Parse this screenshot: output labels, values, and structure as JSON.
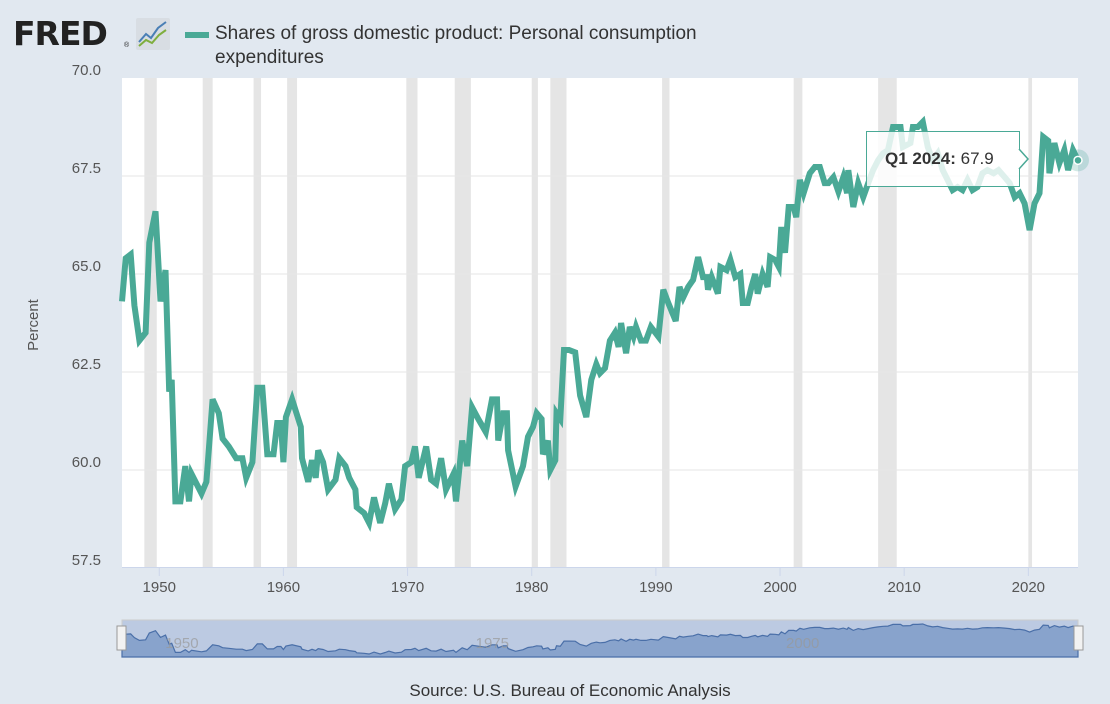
{
  "logo": {
    "text": "FRED",
    "registered": "®",
    "icon": "line-chart-icon"
  },
  "legend": {
    "label": "Shares of gross domestic product: Personal consumption expenditures",
    "color": "#4aa996"
  },
  "tooltip": {
    "period": "Q1 2024:",
    "value": "67.9"
  },
  "source": "Source: U.S. Bureau of Economic Analysis",
  "navigator": {
    "labels": [
      "1950",
      "1975",
      "2000"
    ],
    "label_years": [
      1950,
      1975,
      2000
    ]
  },
  "chart_data": {
    "type": "line",
    "title": "",
    "xlabel": "",
    "ylabel": "Percent",
    "xlim": [
      1947,
      2024
    ],
    "ylim": [
      57.5,
      70.0
    ],
    "yticks": [
      "57.5",
      "60.0",
      "62.5",
      "65.0",
      "67.5",
      "70.0"
    ],
    "xticks": [
      "1950",
      "1960",
      "1970",
      "1980",
      "1990",
      "2000",
      "2010",
      "2020"
    ],
    "grid": true,
    "legend_position": "top",
    "recession_color": "#e5e5e5",
    "recessions": [
      [
        1948.8,
        1949.8
      ],
      [
        1953.5,
        1954.3
      ],
      [
        1957.6,
        1958.2
      ],
      [
        1960.3,
        1961.1
      ],
      [
        1969.9,
        1970.8
      ],
      [
        1973.8,
        1975.1
      ],
      [
        1980.0,
        1980.5
      ],
      [
        1981.5,
        1982.8
      ],
      [
        1990.5,
        1991.1
      ],
      [
        2001.1,
        2001.8
      ],
      [
        2007.9,
        2009.4
      ],
      [
        2020.0,
        2020.3
      ]
    ],
    "series": [
      {
        "color": "#4aa996",
        "points": [
          [
            1947.0,
            64.3
          ],
          [
            1947.3,
            65.4
          ],
          [
            1947.7,
            65.5
          ],
          [
            1948.0,
            64.2
          ],
          [
            1948.4,
            63.3
          ],
          [
            1948.9,
            63.5
          ],
          [
            1949.2,
            65.8
          ],
          [
            1949.7,
            66.6
          ],
          [
            1950.1,
            64.3
          ],
          [
            1950.5,
            65.1
          ],
          [
            1950.8,
            62.0
          ],
          [
            1951.0,
            62.3
          ],
          [
            1951.3,
            59.2
          ],
          [
            1951.7,
            59.2
          ],
          [
            1952.1,
            60.1
          ],
          [
            1952.4,
            59.2
          ],
          [
            1952.6,
            59.9
          ],
          [
            1953.4,
            59.4
          ],
          [
            1953.8,
            59.7
          ],
          [
            1954.3,
            61.8
          ],
          [
            1954.8,
            61.45
          ],
          [
            1955.1,
            60.8
          ],
          [
            1955.6,
            60.6
          ],
          [
            1956.2,
            60.3
          ],
          [
            1956.7,
            60.3
          ],
          [
            1957.0,
            59.8
          ],
          [
            1957.5,
            60.2
          ],
          [
            1957.9,
            62.1
          ],
          [
            1958.3,
            62.1
          ],
          [
            1958.7,
            60.4
          ],
          [
            1959.2,
            60.4
          ],
          [
            1959.5,
            61.2
          ],
          [
            1959.8,
            61.2
          ],
          [
            1960.0,
            60.2
          ],
          [
            1960.2,
            61.35
          ],
          [
            1960.7,
            61.8
          ],
          [
            1961.4,
            61.1
          ],
          [
            1961.5,
            60.3
          ],
          [
            1962.0,
            59.7
          ],
          [
            1962.3,
            60.25
          ],
          [
            1962.6,
            59.8
          ],
          [
            1962.8,
            60.5
          ],
          [
            1963.2,
            60.2
          ],
          [
            1963.6,
            59.5
          ],
          [
            1964.2,
            59.75
          ],
          [
            1964.5,
            60.3
          ],
          [
            1965.0,
            60.1
          ],
          [
            1965.3,
            59.8
          ],
          [
            1965.8,
            59.5
          ],
          [
            1965.9,
            59.05
          ],
          [
            1966.5,
            58.9
          ],
          [
            1966.9,
            58.65
          ],
          [
            1967.3,
            59.3
          ],
          [
            1967.8,
            58.65
          ],
          [
            1968.2,
            59.15
          ],
          [
            1968.5,
            59.65
          ],
          [
            1969.0,
            59.0
          ],
          [
            1969.5,
            59.25
          ],
          [
            1969.8,
            60.1
          ],
          [
            1970.3,
            60.2
          ],
          [
            1970.6,
            60.6
          ],
          [
            1970.9,
            59.8
          ],
          [
            1971.5,
            60.6
          ],
          [
            1971.9,
            59.75
          ],
          [
            1972.3,
            59.65
          ],
          [
            1972.7,
            60.3
          ],
          [
            1973.1,
            59.5
          ],
          [
            1973.7,
            59.9
          ],
          [
            1973.9,
            59.2
          ],
          [
            1974.4,
            60.75
          ],
          [
            1974.8,
            60.1
          ],
          [
            1975.2,
            61.6
          ],
          [
            1975.7,
            61.3
          ],
          [
            1976.3,
            60.97
          ],
          [
            1976.8,
            61.8
          ],
          [
            1977.2,
            61.8
          ],
          [
            1977.3,
            60.75
          ],
          [
            1977.7,
            61.45
          ],
          [
            1978.0,
            61.45
          ],
          [
            1978.1,
            60.5
          ],
          [
            1978.7,
            59.58
          ],
          [
            1979.3,
            60.1
          ],
          [
            1979.7,
            60.85
          ],
          [
            1980.1,
            61.1
          ],
          [
            1980.4,
            61.45
          ],
          [
            1980.8,
            61.3
          ],
          [
            1980.9,
            60.4
          ],
          [
            1981.3,
            60.75
          ],
          [
            1981.5,
            60.0
          ],
          [
            1981.9,
            60.25
          ],
          [
            1982.0,
            61.45
          ],
          [
            1982.3,
            61.3
          ],
          [
            1982.6,
            63.06
          ],
          [
            1983.0,
            63.06
          ],
          [
            1983.5,
            63.0
          ],
          [
            1983.9,
            61.9
          ],
          [
            1984.4,
            61.35
          ],
          [
            1984.8,
            62.3
          ],
          [
            1985.2,
            62.7
          ],
          [
            1985.5,
            62.47
          ],
          [
            1985.9,
            62.6
          ],
          [
            1986.3,
            63.3
          ],
          [
            1986.7,
            63.5
          ],
          [
            1987.0,
            63.14
          ],
          [
            1987.2,
            63.75
          ],
          [
            1987.6,
            62.98
          ],
          [
            1987.9,
            63.65
          ],
          [
            1988.2,
            63.4
          ],
          [
            1988.4,
            63.65
          ],
          [
            1988.8,
            63.3
          ],
          [
            1989.2,
            63.3
          ],
          [
            1989.6,
            63.65
          ],
          [
            1990.2,
            63.4
          ],
          [
            1990.6,
            64.6
          ],
          [
            1991.0,
            64.26
          ],
          [
            1991.6,
            63.8
          ],
          [
            1991.9,
            64.67
          ],
          [
            1992.2,
            64.4
          ],
          [
            1992.6,
            64.67
          ],
          [
            1993.0,
            64.85
          ],
          [
            1993.4,
            65.43
          ],
          [
            1993.8,
            64.92
          ],
          [
            1994.1,
            64.92
          ],
          [
            1994.2,
            64.6
          ],
          [
            1994.5,
            64.92
          ],
          [
            1995.0,
            64.5
          ],
          [
            1995.2,
            65.18
          ],
          [
            1995.7,
            65.1
          ],
          [
            1996.0,
            65.36
          ],
          [
            1996.4,
            64.92
          ],
          [
            1996.8,
            65.0
          ],
          [
            1997.0,
            64.26
          ],
          [
            1997.4,
            64.26
          ],
          [
            1997.7,
            64.67
          ],
          [
            1998.0,
            65.0
          ],
          [
            1998.2,
            64.5
          ],
          [
            1998.6,
            65.0
          ],
          [
            1999.0,
            64.67
          ],
          [
            1999.2,
            65.43
          ],
          [
            1999.6,
            65.36
          ],
          [
            1999.9,
            65.18
          ],
          [
            2000.1,
            66.2
          ],
          [
            2000.4,
            65.54
          ],
          [
            2000.7,
            66.71
          ],
          [
            2001.1,
            66.71
          ],
          [
            2001.3,
            66.45
          ],
          [
            2001.6,
            67.4
          ],
          [
            2001.9,
            67.06
          ],
          [
            2002.4,
            67.57
          ],
          [
            2002.8,
            67.73
          ],
          [
            2003.2,
            67.73
          ],
          [
            2003.6,
            67.32
          ],
          [
            2003.9,
            67.32
          ],
          [
            2004.3,
            67.47
          ],
          [
            2004.7,
            67.1
          ],
          [
            2005.1,
            67.47
          ],
          [
            2005.4,
            67.06
          ],
          [
            2005.5,
            67.65
          ],
          [
            2005.9,
            66.71
          ],
          [
            2006.3,
            67.32
          ],
          [
            2006.7,
            66.96
          ],
          [
            2007.1,
            67.32
          ],
          [
            2007.5,
            67.65
          ],
          [
            2007.9,
            67.9
          ],
          [
            2008.3,
            68.08
          ],
          [
            2008.7,
            68.16
          ],
          [
            2009.1,
            68.75
          ],
          [
            2009.7,
            68.75
          ],
          [
            2009.9,
            68.24
          ],
          [
            2010.5,
            68.34
          ],
          [
            2010.7,
            68.75
          ],
          [
            2011.1,
            68.75
          ],
          [
            2011.5,
            68.88
          ],
          [
            2011.9,
            68.24
          ],
          [
            2012.3,
            67.9
          ],
          [
            2012.7,
            68.08
          ],
          [
            2013.1,
            67.65
          ],
          [
            2013.5,
            67.4
          ],
          [
            2013.9,
            67.14
          ],
          [
            2014.3,
            67.22
          ],
          [
            2014.7,
            67.14
          ],
          [
            2015.1,
            67.4
          ],
          [
            2015.5,
            67.14
          ],
          [
            2015.9,
            67.22
          ],
          [
            2016.3,
            67.57
          ],
          [
            2016.7,
            67.65
          ],
          [
            2017.2,
            67.57
          ],
          [
            2017.6,
            67.65
          ],
          [
            2018.1,
            67.47
          ],
          [
            2018.5,
            67.32
          ],
          [
            2018.9,
            66.96
          ],
          [
            2019.3,
            67.06
          ],
          [
            2019.7,
            66.8
          ],
          [
            2020.1,
            66.12
          ],
          [
            2020.5,
            66.8
          ],
          [
            2020.9,
            67.06
          ],
          [
            2021.2,
            68.5
          ],
          [
            2021.6,
            68.4
          ],
          [
            2021.7,
            67.57
          ],
          [
            2022.1,
            68.34
          ],
          [
            2022.5,
            67.83
          ],
          [
            2022.9,
            68.16
          ],
          [
            2023.2,
            67.65
          ],
          [
            2023.6,
            68.16
          ],
          [
            2024.0,
            67.9
          ]
        ]
      }
    ]
  }
}
